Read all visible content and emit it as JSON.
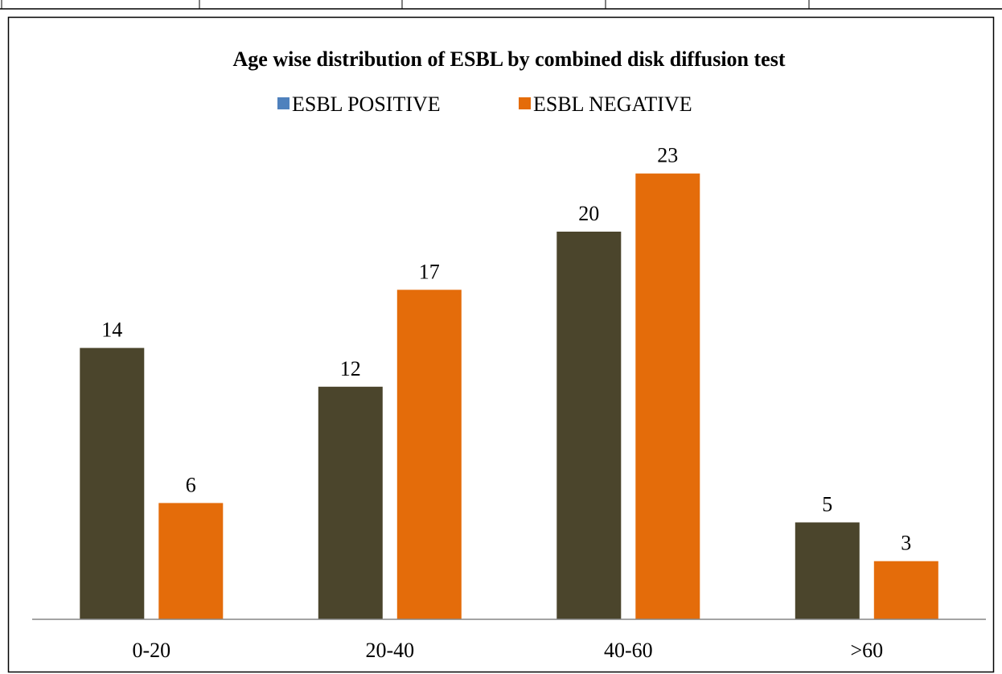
{
  "chart_data": {
    "type": "bar",
    "title": "Age wise distribution of ESBL by combined disk diffusion test",
    "categories": [
      "0-20",
      "20-40",
      "40-60",
      ">60"
    ],
    "series": [
      {
        "name": "ESBL POSITIVE",
        "values": [
          14,
          12,
          20,
          5
        ]
      },
      {
        "name": "ESBL NEGATIVE",
        "values": [
          6,
          17,
          23,
          3
        ]
      }
    ],
    "xlabel": "",
    "ylabel": "",
    "ylim": [
      0,
      25
    ],
    "grid": false,
    "legend_position": "top",
    "colors": {
      "legend_positive_swatch": "#4f81bd",
      "bar_positive": "#4b452c",
      "bar_negative": "#e46c0a",
      "axis": "#868686",
      "frame": "#000000"
    }
  }
}
